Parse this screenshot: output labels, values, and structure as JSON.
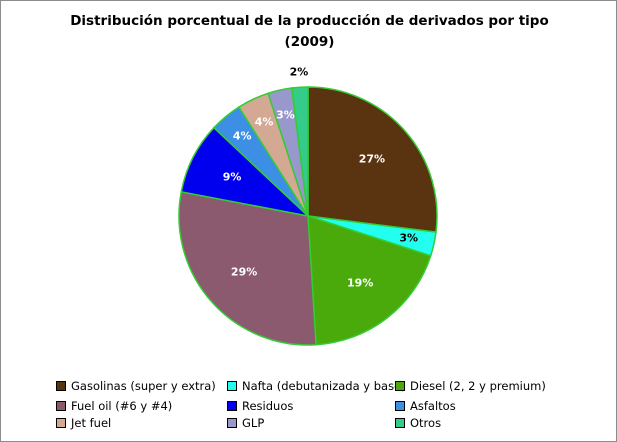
{
  "chart_data": {
    "type": "pie",
    "title": "Distribución porcentual de la producción de derivados por tipo",
    "subtitle": "(2009)",
    "start_angle_deg": 0,
    "direction": "clockwise",
    "slice_border_color": "#33cc33",
    "slices": [
      {
        "label": "Gasolinas (super y extra)",
        "value": 27,
        "display": "27%",
        "color": "#5a3311",
        "label_color": "#ffffff"
      },
      {
        "label": "Nafta (debutanizada y base)",
        "value": 3,
        "display": "3%",
        "color": "#22ffee",
        "label_color": "#000000"
      },
      {
        "label": "Diesel (2, 2 y premium)",
        "value": 19,
        "display": "19%",
        "color": "#4aaa0c",
        "label_color": "#ffffff"
      },
      {
        "label": "Fuel oil (#6 y #4)",
        "value": 29,
        "display": "29%",
        "color": "#8c5a6e",
        "label_color": "#ffffff"
      },
      {
        "label": "Residuos",
        "value": 9,
        "display": "9%",
        "color": "#0000ee",
        "label_color": "#ffffff"
      },
      {
        "label": "Asfaltos",
        "value": 4,
        "display": "4%",
        "color": "#3d8fe6",
        "label_color": "#ffffff"
      },
      {
        "label": "Jet fuel",
        "value": 4,
        "display": "4%",
        "color": "#d4a994",
        "label_color": "#ffffff"
      },
      {
        "label": "GLP",
        "value": 3,
        "display": "3%",
        "color": "#9898cc",
        "label_color": "#ffffff"
      },
      {
        "label": "Otros",
        "value": 2,
        "display": "2%",
        "color": "#33cc88",
        "label_color": "#000000"
      }
    ],
    "legend_position": "bottom"
  }
}
